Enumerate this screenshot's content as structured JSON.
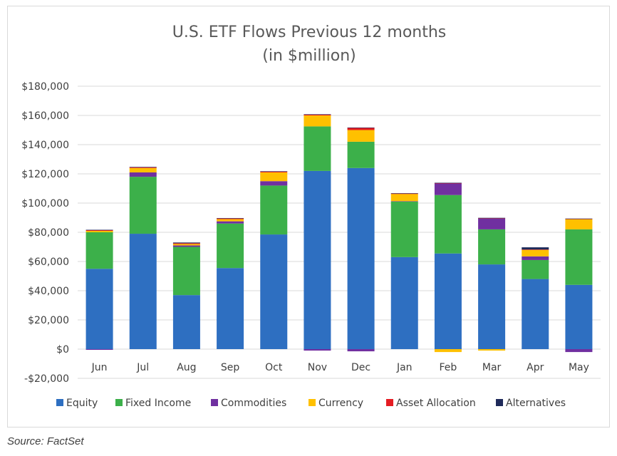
{
  "source_note": "Source: FactSet",
  "chart_data": {
    "type": "bar",
    "stacked": true,
    "title": "U.S. ETF Flows Previous 12 months",
    "subtitle": "(in $million)",
    "xlabel": "",
    "ylabel": "",
    "ylim": [
      -20000,
      180000
    ],
    "y_ticks": [
      -20000,
      0,
      20000,
      40000,
      60000,
      80000,
      100000,
      120000,
      140000,
      160000,
      180000
    ],
    "y_tick_labels": [
      "-$20,000",
      "$0",
      "$20,000",
      "$40,000",
      "$60,000",
      "$80,000",
      "$100,000",
      "$120,000",
      "$140,000",
      "$160,000",
      "$180,000"
    ],
    "grid": true,
    "legend_position": "bottom",
    "categories": [
      "Jun",
      "Jul",
      "Aug",
      "Sep",
      "Oct",
      "Nov",
      "Dec",
      "Jan",
      "Feb",
      "Mar",
      "Apr",
      "May"
    ],
    "series": [
      {
        "name": "Equity",
        "color": "#2E6FC1",
        "values": [
          55000,
          79000,
          37000,
          55500,
          78500,
          122000,
          124000,
          63000,
          65500,
          58000,
          48000,
          44000
        ]
      },
      {
        "name": "Fixed Income",
        "color": "#3CB04A",
        "values": [
          25000,
          39000,
          33000,
          30500,
          33500,
          30500,
          18000,
          38000,
          40000,
          24000,
          13000,
          38000
        ]
      },
      {
        "name": "Commodities",
        "color": "#7030A0",
        "values": [
          -500,
          3000,
          1000,
          1500,
          3000,
          -1000,
          -1500,
          300,
          8000,
          7500,
          2500,
          -2000
        ]
      },
      {
        "name": "Currency",
        "color": "#FFC000",
        "values": [
          1000,
          3000,
          1000,
          1500,
          6000,
          7500,
          8000,
          5000,
          -2000,
          -1000,
          4500,
          7000
        ]
      },
      {
        "name": "Asset Allocation",
        "color": "#E51C23",
        "values": [
          500,
          500,
          500,
          500,
          500,
          600,
          1500,
          200,
          200,
          200,
          200,
          200
        ]
      },
      {
        "name": "Alternatives",
        "color": "#1F2A5A",
        "values": [
          200,
          300,
          500,
          200,
          300,
          200,
          200,
          300,
          200,
          200,
          1500,
          200
        ]
      }
    ]
  }
}
